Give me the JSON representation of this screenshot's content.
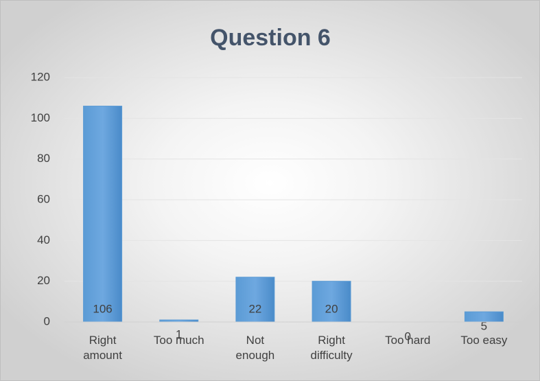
{
  "chart_data": {
    "type": "bar",
    "title": "Question 6",
    "categories": [
      "Right amount",
      "Too much",
      "Not enough",
      "Right difficulty",
      "Too hard",
      "Too easy"
    ],
    "values": [
      106,
      1,
      22,
      20,
      0,
      5
    ],
    "color": "#5b9bd5",
    "ylim": [
      0,
      120
    ],
    "yticks": [
      0,
      20,
      40,
      60,
      80,
      100,
      120
    ],
    "grid": true
  }
}
